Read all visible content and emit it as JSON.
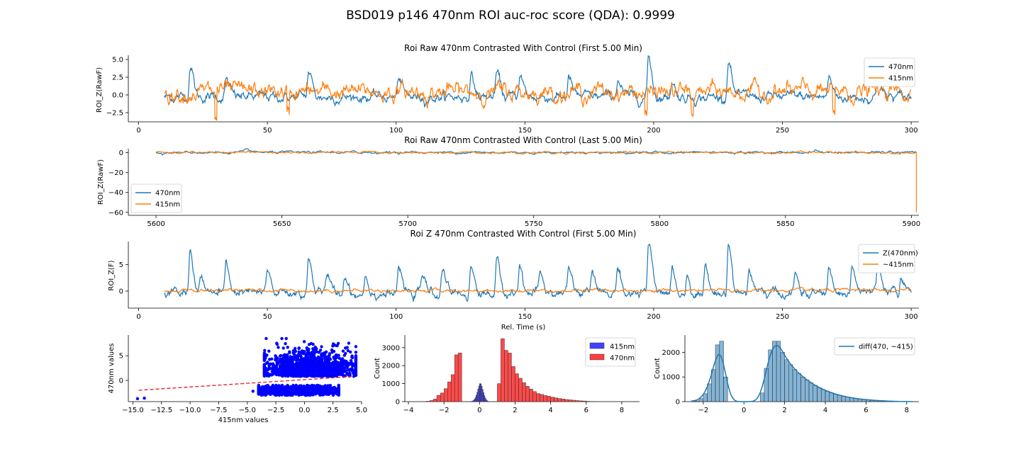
{
  "figure": {
    "title": "BSD019 p146 470nm ROI auc-roc score (QDA): 0.9999"
  },
  "colors": {
    "c470": "#1f77b4",
    "c415": "#ff7f0e",
    "blue_scatter": "#0000ff",
    "red_fit": "#e8262b",
    "hist415": "#2d2dff",
    "hist470": "#ff2a2a",
    "diff": "#1f77b4"
  },
  "chart_data": [
    {
      "id": "raw-first",
      "type": "line",
      "title": "Roi Raw 470nm Contrasted With Control (First 5.00 Min)",
      "xlabel": "",
      "ylabel": "ROI_Z(RawF)",
      "xlim": [
        -4,
        303
      ],
      "ylim": [
        -3.8,
        5.6
      ],
      "xticks": [
        0,
        50,
        100,
        150,
        200,
        250,
        300
      ],
      "yticks": [
        -2.5,
        0.0,
        2.5,
        5.0
      ],
      "ytick_labels": [
        "−2.5",
        "0.0",
        "2.5",
        "5.0"
      ],
      "legend": "top-right",
      "series": [
        {
          "name": "470nm",
          "color_key": "c470",
          "x_range": [
            10,
            300
          ],
          "baseline": -0.3,
          "noise": 0.45,
          "peaks": [
            [
              20,
              4.3
            ],
            [
              34,
              2.2
            ],
            [
              66,
              3.3
            ],
            [
              101,
              2.4
            ],
            [
              129,
              2.8
            ],
            [
              139,
              3.0
            ],
            [
              148,
              3.0
            ],
            [
              167,
              2.4
            ],
            [
              186,
              2.3
            ],
            [
              198,
              5.4
            ],
            [
              207,
              2.0
            ],
            [
              229,
              5.2
            ],
            [
              268,
              2.4
            ],
            [
              287,
              2.8
            ]
          ]
        },
        {
          "name": "415nm",
          "color_key": "c415",
          "x_range": [
            10,
            300
          ],
          "baseline": 0.4,
          "noise": 0.75,
          "dips": [
            [
              30,
              -3.3
            ],
            [
              58,
              -2.2
            ],
            [
              197,
              -2.6
            ],
            [
              215,
              -2.8
            ],
            [
              270,
              -2.4
            ]
          ]
        }
      ]
    },
    {
      "id": "raw-last",
      "type": "line",
      "title": "Roi Raw 470nm Contrasted With Control (Last 5.00 Min)",
      "xlabel": "",
      "ylabel": "ROI_Z(RawF)",
      "xlim": [
        5589,
        5903
      ],
      "ylim": [
        -63,
        4
      ],
      "xticks": [
        5600,
        5650,
        5700,
        5750,
        5800,
        5850,
        5900
      ],
      "yticks": [
        -60,
        -40,
        -20,
        0
      ],
      "ytick_labels": [
        "−60",
        "−40",
        "−20",
        "0"
      ],
      "legend": "lower-left",
      "series": [
        {
          "name": "470nm",
          "color_key": "c470",
          "x_range": [
            5600,
            5902
          ],
          "baseline": 0.3,
          "noise": 0.7,
          "peaks": [
            [
              5636,
              3.5
            ],
            [
              5862,
              2.5
            ]
          ]
        },
        {
          "name": "415nm",
          "color_key": "c415",
          "x_range": [
            5600,
            5902
          ],
          "baseline": 0.2,
          "noise": 0.6,
          "end_drop": -60
        }
      ]
    },
    {
      "id": "z-first",
      "type": "line",
      "title": "Roi Z 470nm Contrasted With Control (First 5.00 Min)",
      "xlabel": "Rel. Time (s)",
      "ylabel": "ROI_Z(F)",
      "xlim": [
        -4,
        303
      ],
      "ylim": [
        -3.2,
        9.3
      ],
      "xticks": [
        0,
        50,
        100,
        150,
        200,
        250,
        300
      ],
      "yticks": [
        0,
        5
      ],
      "ytick_labels": [
        "0",
        "5"
      ],
      "legend": "top-right",
      "series": [
        {
          "name": "Z(470nm)",
          "color_key": "c470",
          "x_range": [
            10,
            300
          ],
          "baseline": -0.5,
          "noise": 0.55,
          "peaks": [
            [
              20,
              7.5
            ],
            [
              24,
              3.0
            ],
            [
              34,
              5.0
            ],
            [
              50,
              3.5
            ],
            [
              66,
              6.5
            ],
            [
              73,
              3.0
            ],
            [
              80,
              3.0
            ],
            [
              88,
              3.0
            ],
            [
              101,
              4.0
            ],
            [
              110,
              3.0
            ],
            [
              118,
              4.0
            ],
            [
              129,
              4.5
            ],
            [
              139,
              5.5
            ],
            [
              148,
              4.8
            ],
            [
              156,
              3.0
            ],
            [
              167,
              4.5
            ],
            [
              176,
              3.2
            ],
            [
              186,
              4.7
            ],
            [
              198,
              8.5
            ],
            [
              207,
              4.0
            ],
            [
              213,
              3.0
            ],
            [
              220,
              4.5
            ],
            [
              229,
              9.0
            ],
            [
              237,
              4.0
            ],
            [
              255,
              3.0
            ],
            [
              268,
              4.0
            ],
            [
              277,
              4.5
            ],
            [
              287,
              4.5
            ],
            [
              296,
              3.0
            ]
          ]
        },
        {
          "name": "~415nm",
          "color_key": "c415",
          "x_range": [
            10,
            300
          ],
          "baseline": 0.1,
          "noise": 0.18
        }
      ]
    },
    {
      "id": "scatter",
      "type": "scatter",
      "title": "",
      "xlabel": "415nm values",
      "ylabel": "470nm values",
      "xlim": [
        -15.4,
        5.0
      ],
      "ylim": [
        -4.3,
        9.2
      ],
      "xticks": [
        -15.0,
        -12.5,
        -10.0,
        -7.5,
        -5.0,
        -2.5,
        0.0,
        2.5,
        5.0
      ],
      "xtick_labels": [
        "−15.0",
        "−12.5",
        "−10.0",
        "−7.5",
        "−5.0",
        "−2.5",
        "0.0",
        "2.5",
        "5.0"
      ],
      "yticks": [
        0,
        5
      ],
      "ytick_labels": [
        "0",
        "5"
      ],
      "clusters": [
        {
          "x_range": [
            -3.5,
            4.5
          ],
          "y_range": [
            0.5,
            8.5
          ],
          "density": "high"
        },
        {
          "x_range": [
            -4.0,
            3.0
          ],
          "y_range": [
            -3.0,
            -1.0
          ],
          "density": "high"
        }
      ],
      "outliers": [
        [
          -14.6,
          -3.7
        ],
        [
          -14.0,
          -3.6
        ],
        [
          -4.5,
          -2.2
        ]
      ],
      "fit_line": {
        "x": [
          -14.5,
          4.3
        ],
        "y": [
          -2.0,
          0.8
        ],
        "style": "dashed"
      }
    },
    {
      "id": "hist-overlay",
      "type": "bar",
      "title": "",
      "xlabel": "",
      "ylabel": "Count",
      "xlim": [
        -4.2,
        9.0
      ],
      "ylim": [
        0,
        3700
      ],
      "xticks": [
        -4,
        -2,
        0,
        2,
        4,
        6,
        8
      ],
      "xtick_labels": [
        "−4",
        "−2",
        "0",
        "2",
        "4",
        "6",
        "8"
      ],
      "yticks": [
        0,
        1000,
        2000,
        3000
      ],
      "legend": "top-right",
      "series": [
        {
          "name": "415nm",
          "color_key": "hist415",
          "bin_width": 0.05,
          "bin_start": -0.5,
          "values": [
            10,
            20,
            40,
            80,
            140,
            230,
            360,
            520,
            700,
            870,
            1000,
            990,
            850,
            680,
            500,
            330,
            200,
            110,
            50,
            20
          ]
        },
        {
          "name": "470nm",
          "color_key": "hist470",
          "bin_width": 0.2,
          "bin_start": -3.2,
          "values": [
            5,
            20,
            60,
            140,
            350,
            480,
            720,
            1100,
            1500,
            2600,
            2700,
            0,
            0,
            0,
            0,
            0,
            0,
            0,
            0,
            0,
            0,
            1000,
            3500,
            2850,
            2700,
            1950,
            1550,
            1300,
            1050,
            850,
            700,
            560,
            450,
            400,
            340,
            300,
            250,
            210,
            175,
            145,
            120,
            100,
            80,
            60,
            45,
            35,
            20,
            10,
            5
          ]
        }
      ]
    },
    {
      "id": "hist-diff",
      "type": "bar",
      "title": "",
      "xlabel": "",
      "ylabel": "Count",
      "xlim": [
        -2.9,
        8.6
      ],
      "ylim": [
        0,
        2700
      ],
      "xticks": [
        -2,
        0,
        2,
        4,
        6,
        8
      ],
      "xtick_labels": [
        "−2",
        "0",
        "2",
        "4",
        "6",
        "8"
      ],
      "yticks": [
        0,
        1000,
        2000
      ],
      "legend": "top-right",
      "series": [
        {
          "name": "diff(470, ~415)",
          "color_key": "diff",
          "bin_width": 0.2,
          "bin_start": -2.6,
          "values": [
            5,
            30,
            120,
            320,
            720,
            1300,
            2300,
            2450,
            1000,
            0,
            0,
            0,
            0,
            0,
            0,
            0,
            0,
            350,
            1350,
            2100,
            2450,
            2450,
            2000,
            1700,
            1500,
            1300,
            1150,
            1000,
            880,
            760,
            660,
            570,
            490,
            420,
            360,
            305,
            260,
            220,
            185,
            155,
            130,
            108,
            90,
            74,
            60,
            48,
            38,
            30,
            22,
            16,
            11,
            7,
            5,
            3,
            2
          ]
        }
      ],
      "kde": true
    }
  ]
}
